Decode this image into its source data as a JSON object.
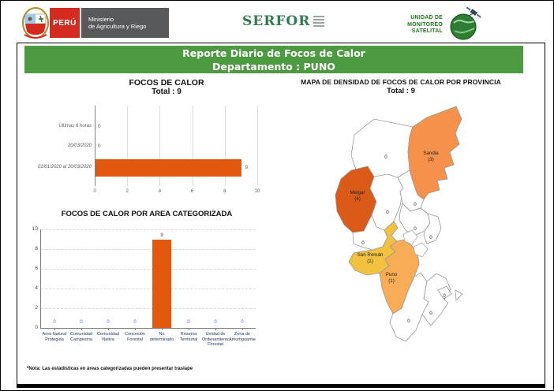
{
  "header": {
    "peru": "PERÚ",
    "ministry_line1": "Ministerio",
    "ministry_line2": "de Agricultura y Riego",
    "serfor": "SERFOR",
    "ums_line1": "UNIDAD DE",
    "ums_line2": "MONITOREO",
    "ums_line3": "SATELITAL"
  },
  "title_bar": {
    "line1": "Reporte Diario de Focos de Calor",
    "line2": "Departamento : PUNO"
  },
  "colors": {
    "title_bar_green": "#4E9A42",
    "bar_orange": "#E4570E",
    "map_orange_dark": "#DC5A18",
    "map_orange": "#F5914B",
    "map_orange_light": "#F8AC55",
    "map_yellow": "#F2C13E",
    "peru_red": "#D52B1E",
    "ministry_gray": "#58595B",
    "serfor_green": "#2E7B4F",
    "ums_green": "#1C7C1C"
  },
  "chart_data": [
    {
      "type": "bar",
      "orientation": "horizontal",
      "title": "FOCOS DE CALOR",
      "subtitle": "Total : 9",
      "categories": [
        "Últimas 6 horas",
        "20/03/2020",
        "01/01/2020 al 20/03/2020"
      ],
      "values": [
        0,
        0,
        9
      ],
      "xlim": [
        0,
        10
      ],
      "xticks": [
        0,
        2,
        4,
        6,
        8,
        10
      ],
      "bar_color": "#E4570E",
      "grid": true
    },
    {
      "type": "bar",
      "orientation": "vertical",
      "title": "FOCOS DE CALOR POR AREA CATEGORIZADA",
      "categories": [
        "Área Natural Protegida",
        "Comunidad Campesina",
        "Comunidad Nativa",
        "Concesión Forestal",
        "No determinado",
        "Reserva Territorial",
        "Unidad de Ordenamiento Forestal",
        "Zona de Amortiguamiento"
      ],
      "values": [
        0,
        0,
        0,
        0,
        9,
        0,
        0,
        0
      ],
      "ylim": [
        0,
        10
      ],
      "yticks": [
        0,
        2,
        4,
        6,
        8,
        10
      ],
      "bar_color": "#E4570E",
      "grid": true
    },
    {
      "type": "map",
      "title": "MAPA DE DENSIDAD DE FOCOS DE CALOR POR PROVINCIA",
      "subtitle": "Total : 9",
      "total": 9,
      "provinces": [
        {
          "name": "",
          "value": 0,
          "fill": "#FFFFFF"
        },
        {
          "name": "Sandia",
          "value": 3,
          "fill": "#F5914B"
        },
        {
          "name": "Melgar",
          "value": 4,
          "fill": "#DC5A18"
        },
        {
          "name": "",
          "value": 0,
          "fill": "#FFFFFF"
        },
        {
          "name": "",
          "value": 0,
          "fill": "#FFFFFF"
        },
        {
          "name": "",
          "value": 0,
          "fill": "#FFFFFF"
        },
        {
          "name": "",
          "value": 0,
          "fill": "#FFFFFF"
        },
        {
          "name": "",
          "value": 0,
          "fill": "#FFFFFF"
        },
        {
          "name": "San Román",
          "value": 1,
          "fill": "#F2C13E"
        },
        {
          "name": "Puno",
          "value": 1,
          "fill": "#F8AC55"
        },
        {
          "name": "",
          "value": 0,
          "fill": "#FFFFFF"
        },
        {
          "name": "",
          "value": 0,
          "fill": "#FFFFFF"
        },
        {
          "name": "",
          "value": 0,
          "fill": "#FFFFFF"
        }
      ]
    }
  ],
  "footer": {
    "note": "*Nota: Las estadísticas en áreas categorizadas pueden presentar traslape"
  }
}
